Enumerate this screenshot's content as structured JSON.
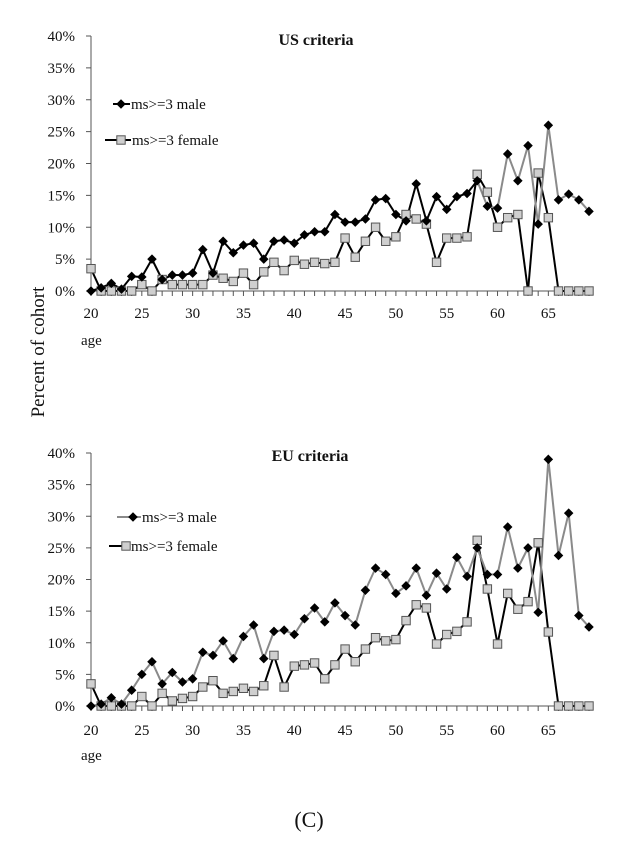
{
  "figure_label": "(C)",
  "shared_ylabel": "Percent of cohort",
  "chart_data": [
    {
      "type": "line",
      "title": "US criteria",
      "xlabel": "age",
      "ylabel": "Percent of cohort",
      "xlim": [
        20,
        69
      ],
      "ylim": [
        0,
        40
      ],
      "x_ticks": [
        "20",
        "25",
        "30",
        "35",
        "40",
        "45",
        "50",
        "55",
        "60",
        "65"
      ],
      "y_ticks": [
        "0%",
        "5%",
        "10%",
        "15%",
        "20%",
        "25%",
        "30%",
        "35%",
        "40%"
      ],
      "legend_position": "upper-left",
      "x": [
        20,
        21,
        22,
        23,
        24,
        25,
        26,
        27,
        28,
        29,
        30,
        31,
        32,
        33,
        34,
        35,
        36,
        37,
        38,
        39,
        40,
        41,
        42,
        43,
        44,
        45,
        46,
        47,
        48,
        49,
        50,
        51,
        52,
        53,
        54,
        55,
        56,
        57,
        58,
        59,
        60,
        61,
        62,
        63,
        64,
        65,
        66,
        67,
        68,
        69
      ],
      "series": [
        {
          "name": "ms>=3 male",
          "marker": "diamond",
          "color": "#000000",
          "values": [
            0,
            0.5,
            1.2,
            0.3,
            2.3,
            2.2,
            5.0,
            1.8,
            2.5,
            2.5,
            2.8,
            6.5,
            2.8,
            7.8,
            6.0,
            7.2,
            7.5,
            5.0,
            7.8,
            8.0,
            7.5,
            8.8,
            9.3,
            9.3,
            12.0,
            10.8,
            10.8,
            11.3,
            14.3,
            14.5,
            12.0,
            11.0,
            16.8,
            11.0,
            14.8,
            12.8,
            14.8,
            15.3,
            17.3,
            13.3,
            13.0,
            21.5,
            17.3,
            22.8,
            10.5,
            26.0,
            14.3,
            15.2,
            14.3,
            12.5
          ]
        },
        {
          "name": "ms>=3 female",
          "marker": "square",
          "color": "#000000",
          "values": [
            3.5,
            0,
            0,
            0,
            0,
            1.0,
            0,
            1.8,
            1.0,
            1.0,
            1.0,
            1.0,
            2.5,
            2.0,
            1.5,
            2.8,
            1.0,
            3.0,
            4.5,
            3.2,
            4.8,
            4.2,
            4.5,
            4.3,
            4.5,
            8.3,
            5.3,
            7.8,
            10.0,
            7.8,
            8.5,
            12.0,
            11.3,
            10.5,
            4.5,
            8.3,
            8.3,
            8.5,
            18.3,
            15.5,
            10.0,
            11.5,
            12.0,
            0,
            18.5,
            11.5,
            0,
            0,
            0,
            0
          ]
        }
      ]
    },
    {
      "type": "line",
      "title": "EU criteria",
      "xlabel": "age",
      "ylabel": "Percent of cohort",
      "xlim": [
        20,
        69
      ],
      "ylim": [
        0,
        40
      ],
      "x_ticks": [
        "20",
        "25",
        "30",
        "35",
        "40",
        "45",
        "50",
        "55",
        "60",
        "65"
      ],
      "y_ticks": [
        "0%",
        "5%",
        "10%",
        "15%",
        "20%",
        "25%",
        "30%",
        "35%",
        "40%"
      ],
      "legend_position": "upper-left",
      "x": [
        20,
        21,
        22,
        23,
        24,
        25,
        26,
        27,
        28,
        29,
        30,
        31,
        32,
        33,
        34,
        35,
        36,
        37,
        38,
        39,
        40,
        41,
        42,
        43,
        44,
        45,
        46,
        47,
        48,
        49,
        50,
        51,
        52,
        53,
        54,
        55,
        56,
        57,
        58,
        59,
        60,
        61,
        62,
        63,
        64,
        65,
        66,
        67,
        68,
        69
      ],
      "series": [
        {
          "name": "ms>=3 male",
          "marker": "diamond",
          "color": "#000000",
          "values": [
            0,
            0.3,
            1.3,
            0.3,
            2.5,
            5.0,
            7.0,
            3.5,
            5.3,
            3.8,
            4.3,
            8.5,
            8.0,
            10.3,
            7.5,
            11.0,
            12.8,
            7.5,
            11.8,
            12.0,
            11.3,
            13.8,
            15.5,
            13.3,
            16.3,
            14.3,
            12.8,
            18.3,
            21.8,
            20.8,
            17.8,
            19.0,
            21.8,
            17.5,
            21.0,
            18.5,
            23.5,
            20.5,
            25.0,
            20.8,
            20.8,
            28.3,
            21.8,
            25.0,
            14.8,
            39.0,
            23.8,
            30.5,
            14.3,
            12.5
          ]
        },
        {
          "name": "ms>=3 female",
          "marker": "square",
          "color": "#000000",
          "values": [
            3.5,
            0,
            0,
            0,
            0,
            1.5,
            0,
            2.0,
            0.8,
            1.2,
            1.5,
            3.0,
            4.0,
            2.0,
            2.3,
            2.8,
            2.3,
            3.2,
            8.0,
            3.0,
            6.3,
            6.5,
            6.8,
            4.3,
            6.5,
            9.0,
            7.0,
            9.0,
            10.8,
            10.3,
            10.5,
            13.5,
            16.0,
            15.5,
            9.8,
            11.3,
            11.8,
            13.3,
            26.2,
            18.5,
            9.8,
            17.8,
            15.3,
            16.5,
            25.8,
            11.7,
            0,
            0,
            0,
            0
          ]
        }
      ]
    }
  ]
}
